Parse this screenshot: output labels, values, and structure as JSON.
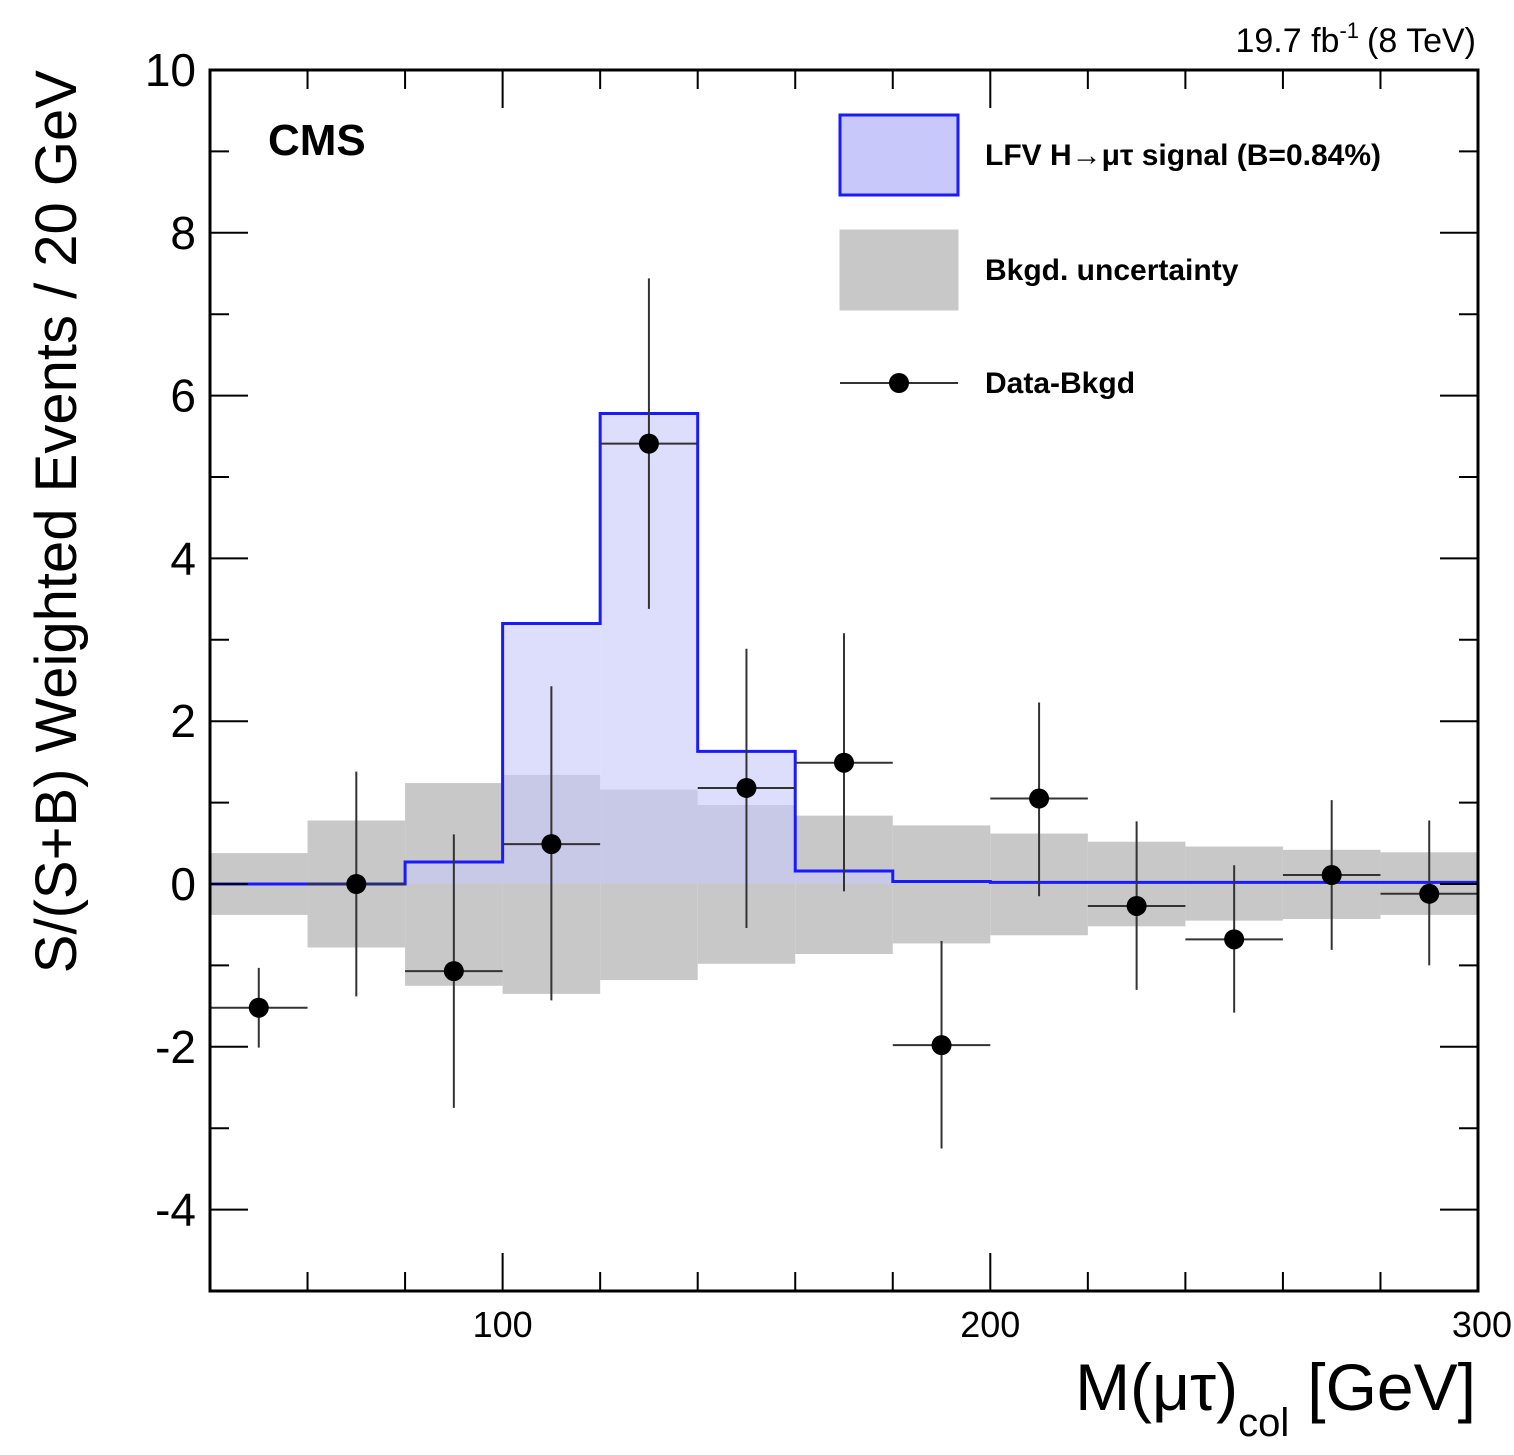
{
  "chart_data": {
    "type": "bar",
    "experiment_label": "CMS",
    "lumi_label": {
      "main": "19.7 fb",
      "superscript": "-1",
      "energy": "(8 TeV)"
    },
    "xlabel": {
      "main": "M(μτ)",
      "subscript": "col",
      "unit": "[GeV]"
    },
    "ylabel": "S/(S+B) Weighted Events / 20 GeV",
    "xlim": [
      40,
      300
    ],
    "ylim": [
      -5,
      10
    ],
    "x_major_ticks": [
      100,
      200,
      300
    ],
    "y_major_ticks": [
      -4,
      -2,
      0,
      2,
      4,
      6,
      8,
      10
    ],
    "x_minor_step": 20,
    "y_minor_step": 1,
    "bin_edges": [
      40,
      60,
      80,
      100,
      120,
      140,
      160,
      180,
      200,
      220,
      240,
      260,
      280,
      300
    ],
    "series": [
      {
        "name": "LFV H→μτ signal (B=0.84%)",
        "kind": "step-fill",
        "color": "#1a1aff",
        "fill": "#c8c8fa",
        "values": [
          0.0,
          0.0,
          0.27,
          3.2,
          5.78,
          1.63,
          0.16,
          0.03,
          0.02,
          0.02,
          0.02,
          0.02,
          0.02
        ]
      },
      {
        "name": "Bkgd. uncertainty",
        "kind": "band",
        "fill": "#c8c8c8",
        "low": [
          -0.38,
          -0.78,
          -1.25,
          -1.35,
          -1.18,
          -0.98,
          -0.86,
          -0.73,
          -0.63,
          -0.52,
          -0.45,
          -0.43,
          -0.38
        ],
        "high": [
          0.38,
          0.78,
          1.24,
          1.34,
          1.16,
          0.97,
          0.84,
          0.72,
          0.62,
          0.52,
          0.46,
          0.42,
          0.39
        ]
      },
      {
        "name": "Data-Bkgd",
        "kind": "points",
        "color": "#000000",
        "points": [
          {
            "x": 50,
            "y": -1.52,
            "ylo": -2.01,
            "yhi": -1.03
          },
          {
            "x": 70,
            "y": 0.0,
            "ylo": -1.38,
            "yhi": 1.38
          },
          {
            "x": 90,
            "y": -1.07,
            "ylo": -2.75,
            "yhi": 0.61
          },
          {
            "x": 110,
            "y": 0.49,
            "ylo": -1.43,
            "yhi": 2.43
          },
          {
            "x": 130,
            "y": 5.41,
            "ylo": 3.38,
            "yhi": 7.44
          },
          {
            "x": 150,
            "y": 1.18,
            "ylo": -0.54,
            "yhi": 2.89
          },
          {
            "x": 170,
            "y": 1.49,
            "ylo": -0.09,
            "yhi": 3.08
          },
          {
            "x": 190,
            "y": -1.98,
            "ylo": -3.25,
            "yhi": -0.7
          },
          {
            "x": 210,
            "y": 1.05,
            "ylo": -0.15,
            "yhi": 2.23
          },
          {
            "x": 230,
            "y": -0.27,
            "ylo": -1.3,
            "yhi": 0.77
          },
          {
            "x": 250,
            "y": -0.68,
            "ylo": -1.58,
            "yhi": 0.23
          },
          {
            "x": 270,
            "y": 0.11,
            "ylo": -0.81,
            "yhi": 1.03
          },
          {
            "x": 290,
            "y": -0.12,
            "ylo": -1.0,
            "yhi": 0.78
          }
        ]
      }
    ],
    "legend": {
      "position": "top-right",
      "entries": [
        {
          "label": "LFV H→μτ signal (B=0.84%)",
          "symbol": "box",
          "fill": "#c8c8fa",
          "stroke": "#1a1aff"
        },
        {
          "label": "Bkgd. uncertainty",
          "symbol": "box",
          "fill": "#c8c8c8",
          "stroke": "#c8c8c8"
        },
        {
          "label": "Data-Bkgd",
          "symbol": "marker-line",
          "fill": "#000000",
          "stroke": "#000000"
        }
      ]
    }
  }
}
